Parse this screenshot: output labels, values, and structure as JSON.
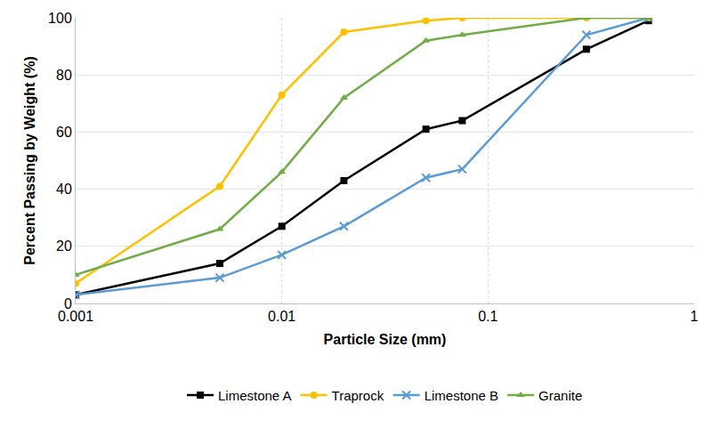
{
  "chart_data": {
    "type": "line",
    "x_label": "Particle Size (mm)",
    "y_label": "Percent Passing by Weight (%)",
    "x": [
      0.001,
      0.005,
      0.01,
      0.02,
      0.05,
      0.075,
      0.3,
      0.6
    ],
    "series": [
      {
        "name": "Limestone A",
        "color": "#000000",
        "marker": "square",
        "values": [
          3,
          14,
          27,
          43,
          61,
          64,
          89,
          99
        ]
      },
      {
        "name": "Traprock",
        "color": "#FFC000",
        "marker": "circle",
        "values": [
          7,
          41,
          73,
          95,
          99,
          100,
          100,
          100
        ]
      },
      {
        "name": "Limestone B",
        "color": "#5B9BD5",
        "marker": "x",
        "values": [
          3,
          9,
          17,
          27,
          44,
          47,
          94,
          100
        ]
      },
      {
        "name": "Granite",
        "color": "#70AD47",
        "marker": "triangle",
        "values": [
          10,
          26,
          46,
          72,
          92,
          94,
          100,
          100
        ]
      }
    ],
    "log": "x",
    "xlim": [
      0.001,
      1
    ],
    "xticks": [
      0.001,
      0.01,
      0.1,
      1
    ],
    "ylim": [
      0,
      100
    ],
    "yticks": [
      0,
      20,
      40,
      60,
      80,
      100
    ],
    "grid": true,
    "legend": "bottom"
  }
}
